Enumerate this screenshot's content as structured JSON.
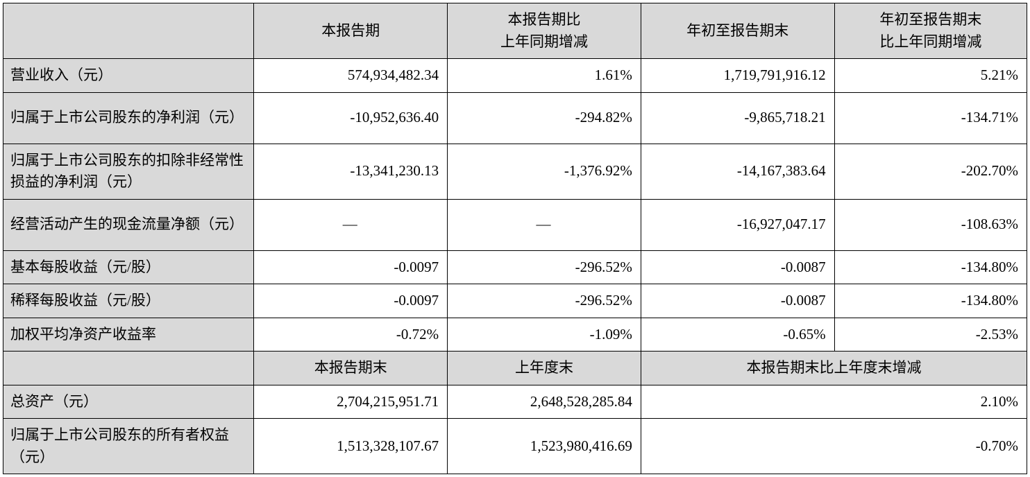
{
  "table": {
    "background_color": "#ffffff",
    "header_bg_color": "#d9d9d9",
    "border_color": "#000000",
    "font_size": 21,
    "headers_top": {
      "blank": "",
      "col1": "本报告期",
      "col2": "本报告期比\n上年同期增减",
      "col3": "年初至报告期末",
      "col4": "年初至报告期末\n比上年同期增减"
    },
    "rows_top": [
      {
        "label": "营业收入（元）",
        "c1": "574,934,482.34",
        "c2": "1.61%",
        "c3": "1,719,791,916.12",
        "c4": "5.21%",
        "tall": false
      },
      {
        "label": "归属于上市公司股东的净利润（元）",
        "c1": "-10,952,636.40",
        "c2": "-294.82%",
        "c3": "-9,865,718.21",
        "c4": "-134.71%",
        "tall": true
      },
      {
        "label": "归属于上市公司股东的扣除非经常性损益的净利润（元）",
        "c1": "-13,341,230.13",
        "c2": "-1,376.92%",
        "c3": "-14,167,383.64",
        "c4": "-202.70%",
        "tall": true
      },
      {
        "label": "经营活动产生的现金流量净额（元）",
        "c1": "—",
        "c2": "—",
        "c3": "-16,927,047.17",
        "c4": "-108.63%",
        "tall": true
      },
      {
        "label": "基本每股收益（元/股）",
        "c1": "-0.0097",
        "c2": "-296.52%",
        "c3": "-0.0087",
        "c4": "-134.80%",
        "tall": false
      },
      {
        "label": "稀释每股收益（元/股）",
        "c1": "-0.0097",
        "c2": "-296.52%",
        "c3": "-0.0087",
        "c4": "-134.80%",
        "tall": false
      },
      {
        "label": "加权平均净资产收益率",
        "c1": "-0.72%",
        "c2": "-1.09%",
        "c3": "-0.65%",
        "c4": "-2.53%",
        "tall": false
      }
    ],
    "headers_bottom": {
      "blank": "",
      "col1": "本报告期末",
      "col2": "上年度末",
      "col34": "本报告期末比上年度末增减"
    },
    "rows_bottom": [
      {
        "label": "总资产（元）",
        "c1": "2,704,215,951.71",
        "c2": "2,648,528,285.84",
        "c34": "2.10%",
        "tall": false
      },
      {
        "label": "归属于上市公司股东的所有者权益（元）",
        "c1": "1,513,328,107.67",
        "c2": "1,523,980,416.69",
        "c34": "-0.70%",
        "tall": true
      }
    ]
  }
}
